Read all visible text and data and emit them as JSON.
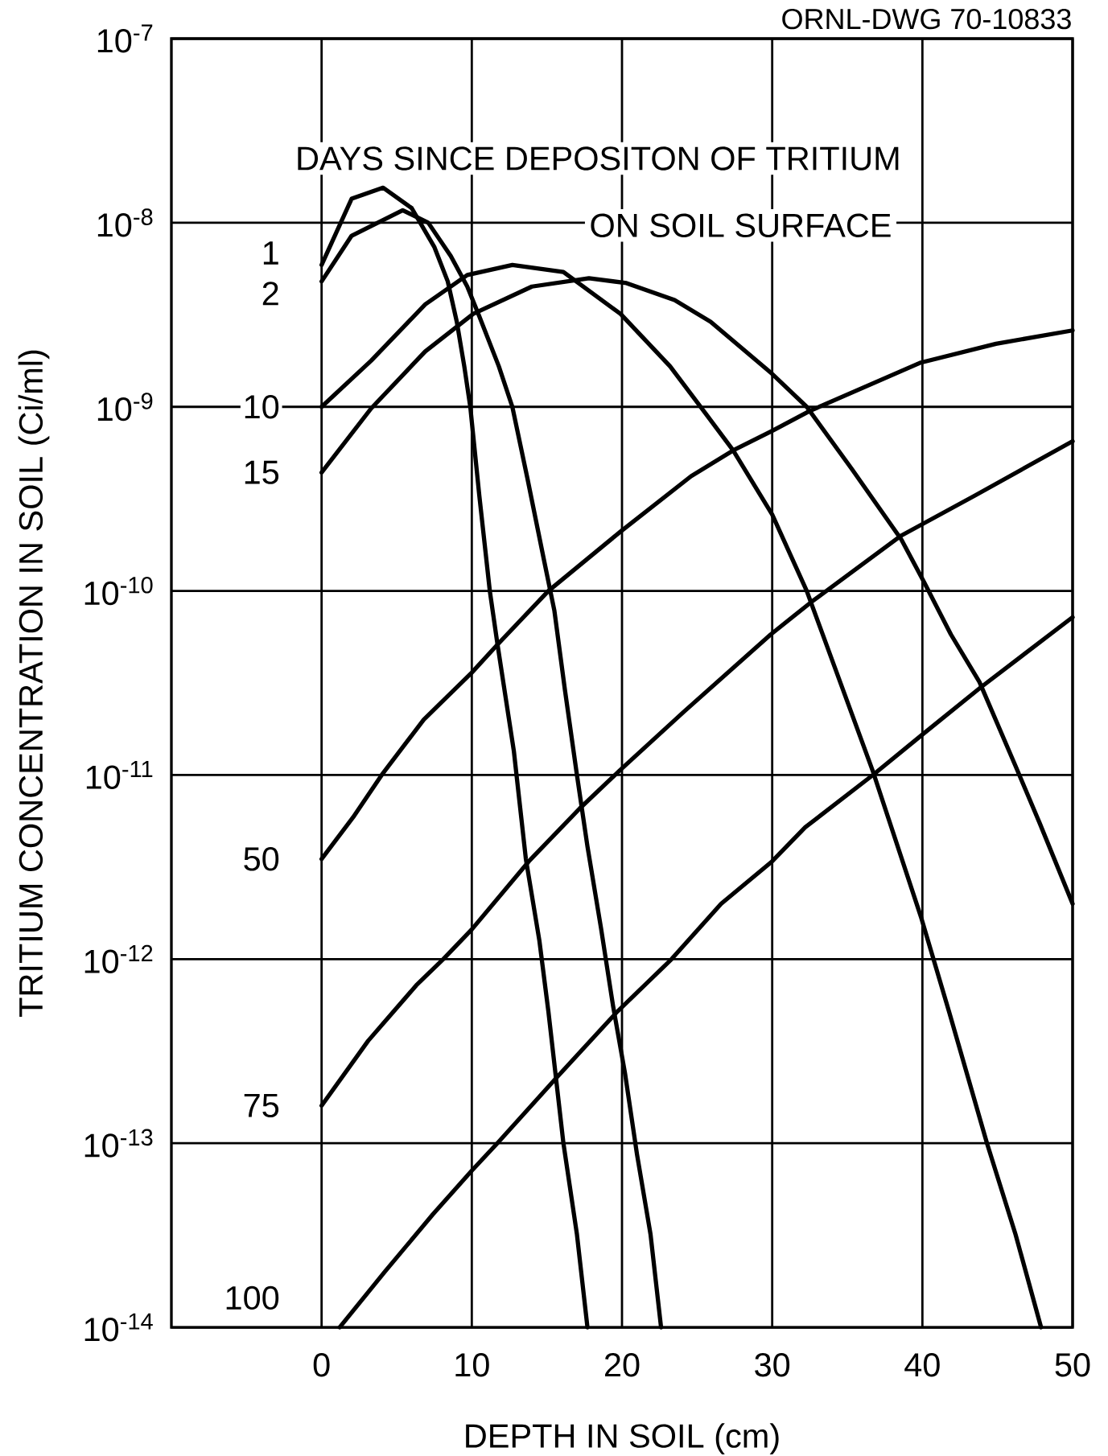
{
  "chart_data": {
    "type": "line",
    "xlabel": "DEPTH IN SOIL (cm)",
    "ylabel": "TRITIUM CONCENTRATION IN SOIL (Ci/ml)",
    "annotations": [
      "DAYS SINCE DEPOSITON OF TRITIUM",
      "ON SOIL SURFACE",
      "ORNL-DWG 70-10833"
    ],
    "log": "y",
    "grid": true,
    "marker": "none",
    "line_style": "solid",
    "xlim": [
      -10,
      50
    ],
    "xticks": [
      0,
      10,
      20,
      30,
      40,
      50
    ],
    "ylim": [
      1e-14,
      1e-07
    ],
    "yticks": [
      {
        "value": 1e-14,
        "label": "10$^{-14}$"
      },
      {
        "value": 1e-13,
        "label": "10$^{-13}$"
      },
      {
        "value": 1e-12,
        "label": "10$^{-12}$"
      },
      {
        "value": 1e-11,
        "label": "10$^{-11}$"
      },
      {
        "value": 1e-10,
        "label": "10$^{-10}$"
      },
      {
        "value": 1e-09,
        "label": "10$^{-9}$"
      },
      {
        "value": 1e-08,
        "label": "10$^{-8}$"
      },
      {
        "value": 1e-07,
        "label": "10$^{-7}$"
      }
    ],
    "series": [
      {
        "name": "1",
        "color": "#000000",
        "x": [
          0,
          2,
          4.1,
          6,
          7.5,
          8.4,
          9,
          9.5,
          9.9,
          10.5,
          11.2,
          11.7,
          12.8,
          13.6,
          14.5,
          15.1,
          16.1,
          17,
          17.7
        ],
        "values": [
          5.9e-09,
          1.35e-08,
          1.55e-08,
          1.2e-08,
          7.4e-09,
          4.8e-09,
          2.9e-09,
          1.66e-09,
          1e-09,
          3.3e-10,
          1e-10,
          5.2e-11,
          1.35e-11,
          3.5e-12,
          1.26e-12,
          5.2e-13,
          1e-13,
          3.2e-14,
          1e-14
        ]
      },
      {
        "name": "2",
        "color": "#000000",
        "x": [
          0,
          2,
          5.4,
          7.1,
          8.6,
          9.7,
          10.5,
          11.8,
          12.7,
          13.7,
          14.8,
          15.5,
          16.2,
          17,
          17.7,
          18.6,
          19.4,
          20.2,
          21,
          21.9,
          22.6
        ],
        "values": [
          4.8e-09,
          8.5e-09,
          1.17e-08,
          1e-08,
          6.6e-09,
          4.5e-09,
          3.1e-09,
          1.66e-09,
          1e-09,
          4.1e-10,
          1.48e-10,
          7.8e-11,
          2.9e-11,
          1e-11,
          4.1e-12,
          1.48e-12,
          5.6e-13,
          2.4e-13,
          8.7e-14,
          3.2e-14,
          1e-14
        ]
      },
      {
        "name": "10",
        "color": "#000000",
        "x": [
          0,
          3.3,
          6.9,
          9.7,
          12.7,
          16.1,
          19.9,
          23.2,
          25.7,
          27.4,
          30,
          32.3,
          36.7,
          39.9,
          41.8,
          44.3,
          46.2,
          47.9
        ],
        "values": [
          1e-09,
          1.78e-09,
          3.6e-09,
          5.2e-09,
          5.9e-09,
          5.4e-09,
          3.2e-09,
          1.66e-09,
          8.9e-10,
          5.8e-10,
          2.6e-10,
          1e-10,
          1.05e-11,
          1.7e-12,
          5.1e-13,
          1e-13,
          3.2e-14,
          1e-14
        ]
      },
      {
        "name": "15",
        "color": "#000000",
        "x": [
          0,
          3.3,
          6.9,
          10.1,
          14,
          17.8,
          20.3,
          23.5,
          25.9,
          30,
          32.3,
          35.3,
          38.6,
          40.1,
          41.9,
          43.8,
          46.2,
          47.8,
          50
        ],
        "values": [
          4.4e-10,
          9.8e-10,
          2e-09,
          3.2e-09,
          4.5e-09,
          5e-09,
          4.7e-09,
          3.8e-09,
          2.9e-09,
          1.51e-09,
          1e-09,
          4.6e-10,
          1.9e-10,
          1.12e-10,
          5.8e-11,
          3.2e-11,
          1.12e-11,
          5.5e-12,
          2e-12
        ]
      },
      {
        "name": "50",
        "color": "#000000",
        "x": [
          0,
          2.1,
          4,
          6.8,
          10,
          11.7,
          15.1,
          19.9,
          24.6,
          27.4,
          30,
          32.5,
          39.9,
          44.9,
          50
        ],
        "values": [
          3.5e-12,
          5.9e-12,
          1e-11,
          2e-11,
          3.6e-11,
          5.1e-11,
          1e-10,
          2.1e-10,
          4.2e-10,
          5.8e-10,
          7.4e-10,
          9.5e-10,
          1.74e-09,
          2.2e-09,
          2.6e-09
        ]
      },
      {
        "name": "75",
        "color": "#000000",
        "x": [
          0,
          3.1,
          6.3,
          8.1,
          10,
          13.8,
          17.2,
          19.8,
          24.1,
          29.9,
          32.6,
          38.6,
          43.5,
          50
        ],
        "values": [
          1.6e-13,
          3.6e-13,
          7.2e-13,
          1e-12,
          1.45e-12,
          3.4e-12,
          6.6e-12,
          1.05e-11,
          2.2e-11,
          5.8e-11,
          8.7e-11,
          2e-10,
          3.3e-10,
          6.5e-10
        ]
      },
      {
        "name": "100",
        "color": "#000000",
        "x": [
          1.2,
          4.2,
          7.4,
          10,
          11.7,
          15.7,
          19.7,
          23.3,
          26.6,
          30,
          32.2,
          36.7,
          40,
          43.9,
          50
        ],
        "values": [
          1e-14,
          2e-14,
          4.1e-14,
          7.1e-14,
          1e-13,
          2.3e-13,
          5.2e-13,
          1e-12,
          2e-12,
          3.4e-12,
          5.2e-12,
          1e-11,
          1.66e-11,
          3e-11,
          7.2e-11
        ]
      }
    ]
  }
}
